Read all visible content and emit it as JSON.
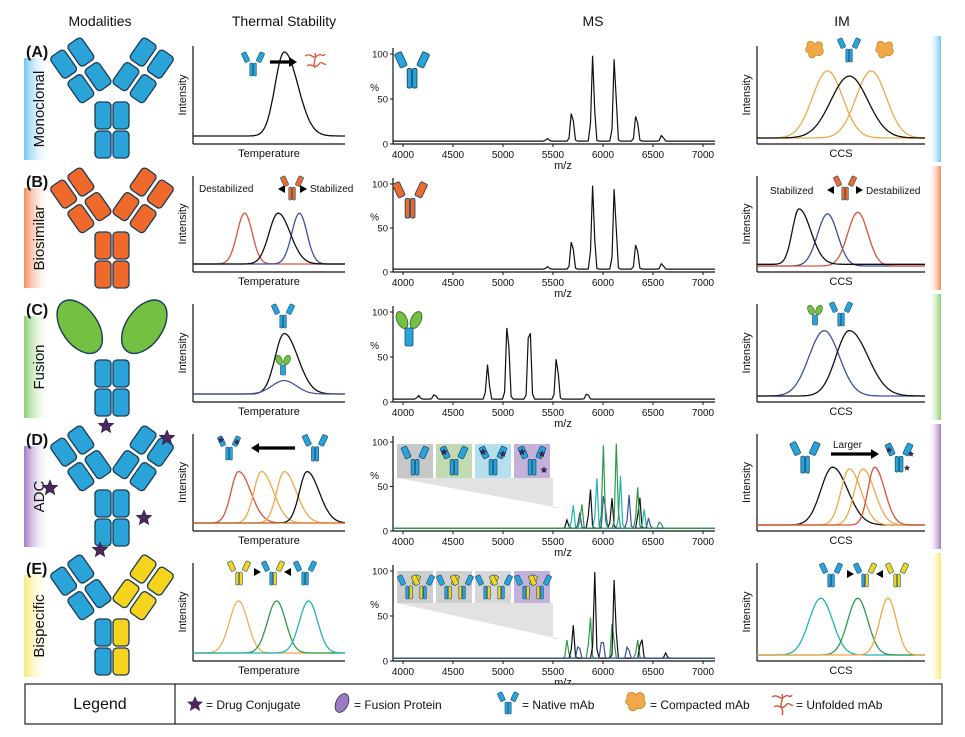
{
  "headers": [
    "Modalities",
    "Thermal Stability",
    "MS",
    "IM"
  ],
  "colors": {
    "blue": "#2aa3d8",
    "orange": "#ef6a2a",
    "green": "#74c043",
    "yellow": "#f6d31d",
    "purple": "#4a2a5e",
    "black": "#111111",
    "tan": "#f0a848",
    "red": "#d9533b",
    "navy": "#3d4fa0",
    "teal": "#22b3b3",
    "greenline": "#2f9a4a"
  },
  "rows": [
    {
      "letter": "(A)",
      "label": "Monoclonal",
      "band": "#6fc7ef",
      "ts_xlabel": "Temperature",
      "im_xlabel": "CCS"
    },
    {
      "letter": "(B)",
      "label": "Biosimilar",
      "band": "#f48a5e",
      "ts_xlabel": "Temperature",
      "im_xlabel": "CCS",
      "ts_left": "Destabilized",
      "ts_right": "Stabilized",
      "im_left": "Stabilized",
      "im_right": "Destabilized"
    },
    {
      "letter": "(C)",
      "label": "Fusion",
      "band": "#8bcf74",
      "ts_xlabel": "Temperature",
      "im_xlabel": "CCS"
    },
    {
      "letter": "(D)",
      "label": "ADC",
      "band": "#a27cc4",
      "ts_xlabel": "Temperature",
      "im_xlabel": "CCS",
      "im_note": "Larger"
    },
    {
      "letter": "(E)",
      "label": "Bispecific",
      "band": "#f7ea7a",
      "ts_xlabel": "Temperature",
      "im_xlabel": "CCS"
    }
  ],
  "axis": {
    "ts_ylabel": "Intensity",
    "im_ylabel": "Intensity",
    "ms_ylabel": "%",
    "ms_xlabel": "m/z",
    "ms_yticks": [
      "100",
      "50",
      "0"
    ],
    "ms_xticks": [
      "4000",
      "4500",
      "5000",
      "5500",
      "6000",
      "6500",
      "7000"
    ]
  },
  "legend": {
    "title": "Legend",
    "items": [
      "= Drug Conjugate",
      "= Fusion Protein",
      "= Native mAb",
      "= Compacted mAb",
      "= Unfolded mAb"
    ]
  }
}
